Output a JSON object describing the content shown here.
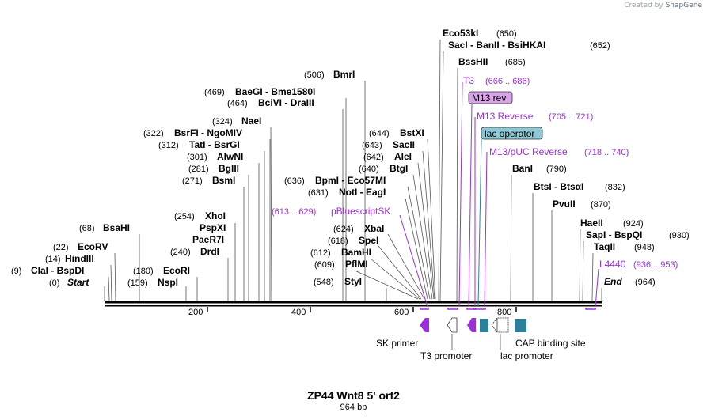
{
  "credit": "Created by",
  "credit_brand": "SnapGene",
  "title": "ZP44 Wnt8 5' orf2",
  "length_label": "964 bp",
  "ticks": [
    "200",
    "400",
    "600",
    "800"
  ],
  "sites_left": [
    {
      "pos": "(0)",
      "name": "Start",
      "italic": true
    },
    {
      "pos": "(9)",
      "name": "ClaI  - BspDI"
    },
    {
      "pos": "(14)",
      "name": "HindIII"
    },
    {
      "pos": "(22)",
      "name": "EcoRV"
    },
    {
      "pos": "(68)",
      "name": "BsaHI"
    },
    {
      "pos": "(159)",
      "name": "NspI"
    },
    {
      "pos": "(180)",
      "name": "EcoRI"
    },
    {
      "pos": "(240)",
      "name": "DrdI"
    },
    {
      "pos": "",
      "name": "PaeR7I"
    },
    {
      "pos": "",
      "name": "PspXI"
    },
    {
      "pos": "(254)",
      "name": "XhoI"
    },
    {
      "pos": "(271)",
      "name": "BsmI"
    },
    {
      "pos": "(281)",
      "name": "BglII"
    },
    {
      "pos": "(301)",
      "name": "AlwNI"
    },
    {
      "pos": "(312)",
      "name": "TatI  - BsrGI"
    },
    {
      "pos": "(322)",
      "name": "BsrFI  - NgoMIV"
    },
    {
      "pos": "(324)",
      "name": "NaeI"
    },
    {
      "pos": "(464)",
      "name": "BciVI  - DraIII"
    },
    {
      "pos": "(469)",
      "name": "BaeGI  - Bme1580I"
    },
    {
      "pos": "(506)",
      "name": "BmrI"
    },
    {
      "pos": "(548)",
      "name": "StyI"
    },
    {
      "pos": "(609)",
      "name": "PflMI"
    },
    {
      "pos": "(612)",
      "name": "BamHI"
    },
    {
      "pos": "(618)",
      "name": "SpeI"
    },
    {
      "pos": "(624)",
      "name": "XbaI"
    },
    {
      "pos": "(631)",
      "name": "NotI  - EagI"
    },
    {
      "pos": "(636)",
      "name": "BpmI  - Eco57MI"
    },
    {
      "pos": "(640)",
      "name": "BtgI"
    },
    {
      "pos": "(642)",
      "name": "AleI"
    },
    {
      "pos": "(643)",
      "name": "SacII"
    },
    {
      "pos": "(644)",
      "name": "BstXI"
    }
  ],
  "sites_right": [
    {
      "pos": "(650)",
      "name": "Eco53kI"
    },
    {
      "pos": "(652)",
      "name": "SacI  - BanII  - BsiHKAI"
    },
    {
      "pos": "(685)",
      "name": "BssHII"
    },
    {
      "pos": "(790)",
      "name": "BanI"
    },
    {
      "pos": "(832)",
      "name": "BtsI  - BtsαI"
    },
    {
      "pos": "(870)",
      "name": "PvuII"
    },
    {
      "pos": "(924)",
      "name": "HaeII"
    },
    {
      "pos": "(930)",
      "name": "SapI  - BspQI"
    },
    {
      "pos": "(948)",
      "name": "TaqII"
    },
    {
      "pos": "(964)",
      "name": "End",
      "italic": true
    }
  ],
  "features_text": [
    {
      "name": "T3",
      "range": "(666 .. 686)"
    },
    {
      "name": "M13 Reverse",
      "range": "(705 .. 721)"
    },
    {
      "name": "M13/pUC Reverse",
      "range": "(718 .. 740)"
    },
    {
      "name": "L4440",
      "range": "(936 .. 953)"
    },
    {
      "name": "pBluescriptSK",
      "range": "(613 .. 629)"
    }
  ],
  "features_boxed": [
    {
      "name": "M13 rev",
      "color": "#d9a3e8"
    },
    {
      "name": "lac operator",
      "color": "#8ec9d6"
    }
  ],
  "feature_labels": [
    "SK primer",
    "T3 promoter",
    "lac promoter",
    "CAP binding site"
  ],
  "colors": {
    "primer": "#9b30d9",
    "feature_blue": "#2e7f99"
  }
}
